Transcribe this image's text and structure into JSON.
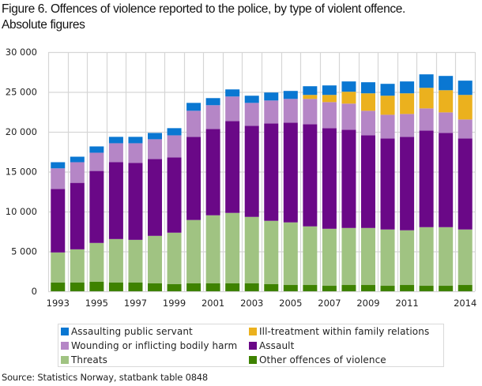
{
  "chart_data": {
    "type": "bar",
    "stacked": true,
    "title": "Figure 6. Offences of violence reported to the police, by type of violent offence.",
    "subtitle": "Absolute figures",
    "xlabel": "",
    "ylabel": "",
    "ylim": [
      0,
      30000
    ],
    "y_ticks": [
      0,
      5000,
      10000,
      15000,
      20000,
      25000,
      30000
    ],
    "y_tick_labels": [
      "0",
      "5 000",
      "10 000",
      "15 000",
      "20 000",
      "25 000",
      "30 000"
    ],
    "grid": true,
    "legend_position": "bottom",
    "categories": [
      "1993",
      "1994",
      "1995",
      "1996",
      "1997",
      "1998",
      "1999",
      "2000",
      "2001",
      "2002",
      "2003",
      "2004",
      "2005",
      "2006",
      "2007",
      "2008",
      "2009",
      "2010",
      "2011",
      "2012",
      "2013",
      "2014"
    ],
    "x_tick_labels": [
      "1993",
      "",
      "1995",
      "",
      "1997",
      "",
      "1999",
      "",
      "2001",
      "",
      "2003",
      "",
      "2005",
      "",
      "2007",
      "",
      "2009",
      "",
      "2011",
      "",
      "",
      "2014"
    ],
    "series": [
      {
        "name": "Other offences of violence",
        "color": "#3e8200",
        "values": [
          1100,
          1090,
          1190,
          1090,
          1090,
          990,
          890,
          990,
          990,
          990,
          990,
          890,
          790,
          790,
          690,
          790,
          790,
          690,
          790,
          690,
          690,
          790
        ]
      },
      {
        "name": "Threats",
        "color": "#a0c382",
        "values": [
          3770,
          4170,
          4870,
          5460,
          5360,
          5960,
          6460,
          7950,
          8540,
          8840,
          8340,
          7950,
          7850,
          7350,
          7150,
          7150,
          7150,
          7060,
          6860,
          7350,
          7350,
          6960
        ]
      },
      {
        "name": "Assault",
        "color": "#6a0887",
        "values": [
          7970,
          8340,
          9030,
          9640,
          9640,
          9630,
          9430,
          10430,
          10830,
          11520,
          11420,
          12210,
          12510,
          12810,
          12620,
          12320,
          11620,
          11420,
          11720,
          12120,
          11820,
          11420
        ]
      },
      {
        "name": "Wounding or inflicting bodily harm",
        "color": "#b586c6",
        "values": [
          2580,
          2590,
          2290,
          2380,
          2480,
          2490,
          2780,
          3270,
          2980,
          3080,
          2880,
          2880,
          2980,
          3180,
          3270,
          3280,
          3080,
          2970,
          2870,
          2780,
          2580,
          2380
        ]
      },
      {
        "name": "Ill-treatment within family relations",
        "color": "#ebb11e",
        "values": [
          0,
          0,
          0,
          0,
          0,
          0,
          0,
          0,
          0,
          0,
          0,
          0,
          0,
          500,
          900,
          1490,
          2190,
          2390,
          2590,
          2580,
          2780,
          3080
        ]
      },
      {
        "name": "Assaulting public servant",
        "color": "#0a77d2",
        "values": [
          770,
          690,
          790,
          800,
          800,
          790,
          900,
          990,
          890,
          890,
          900,
          1000,
          1000,
          1090,
          1190,
          1290,
          1390,
          1490,
          1490,
          1690,
          1790,
          1790
        ]
      }
    ]
  },
  "legend": {
    "items": [
      {
        "label": "Assaulting public servant",
        "color": "#0a77d2"
      },
      {
        "label": "Ill-treatment within family relations",
        "color": "#ebb11e"
      },
      {
        "label": "Wounding or inflicting bodily harm",
        "color": "#b586c6"
      },
      {
        "label": "Assault",
        "color": "#6a0887"
      },
      {
        "label": "Threats",
        "color": "#a0c382"
      },
      {
        "label": "Other offences of violence",
        "color": "#3e8200"
      }
    ]
  },
  "source": "Source: Statistics Norway, statbank table 0848"
}
